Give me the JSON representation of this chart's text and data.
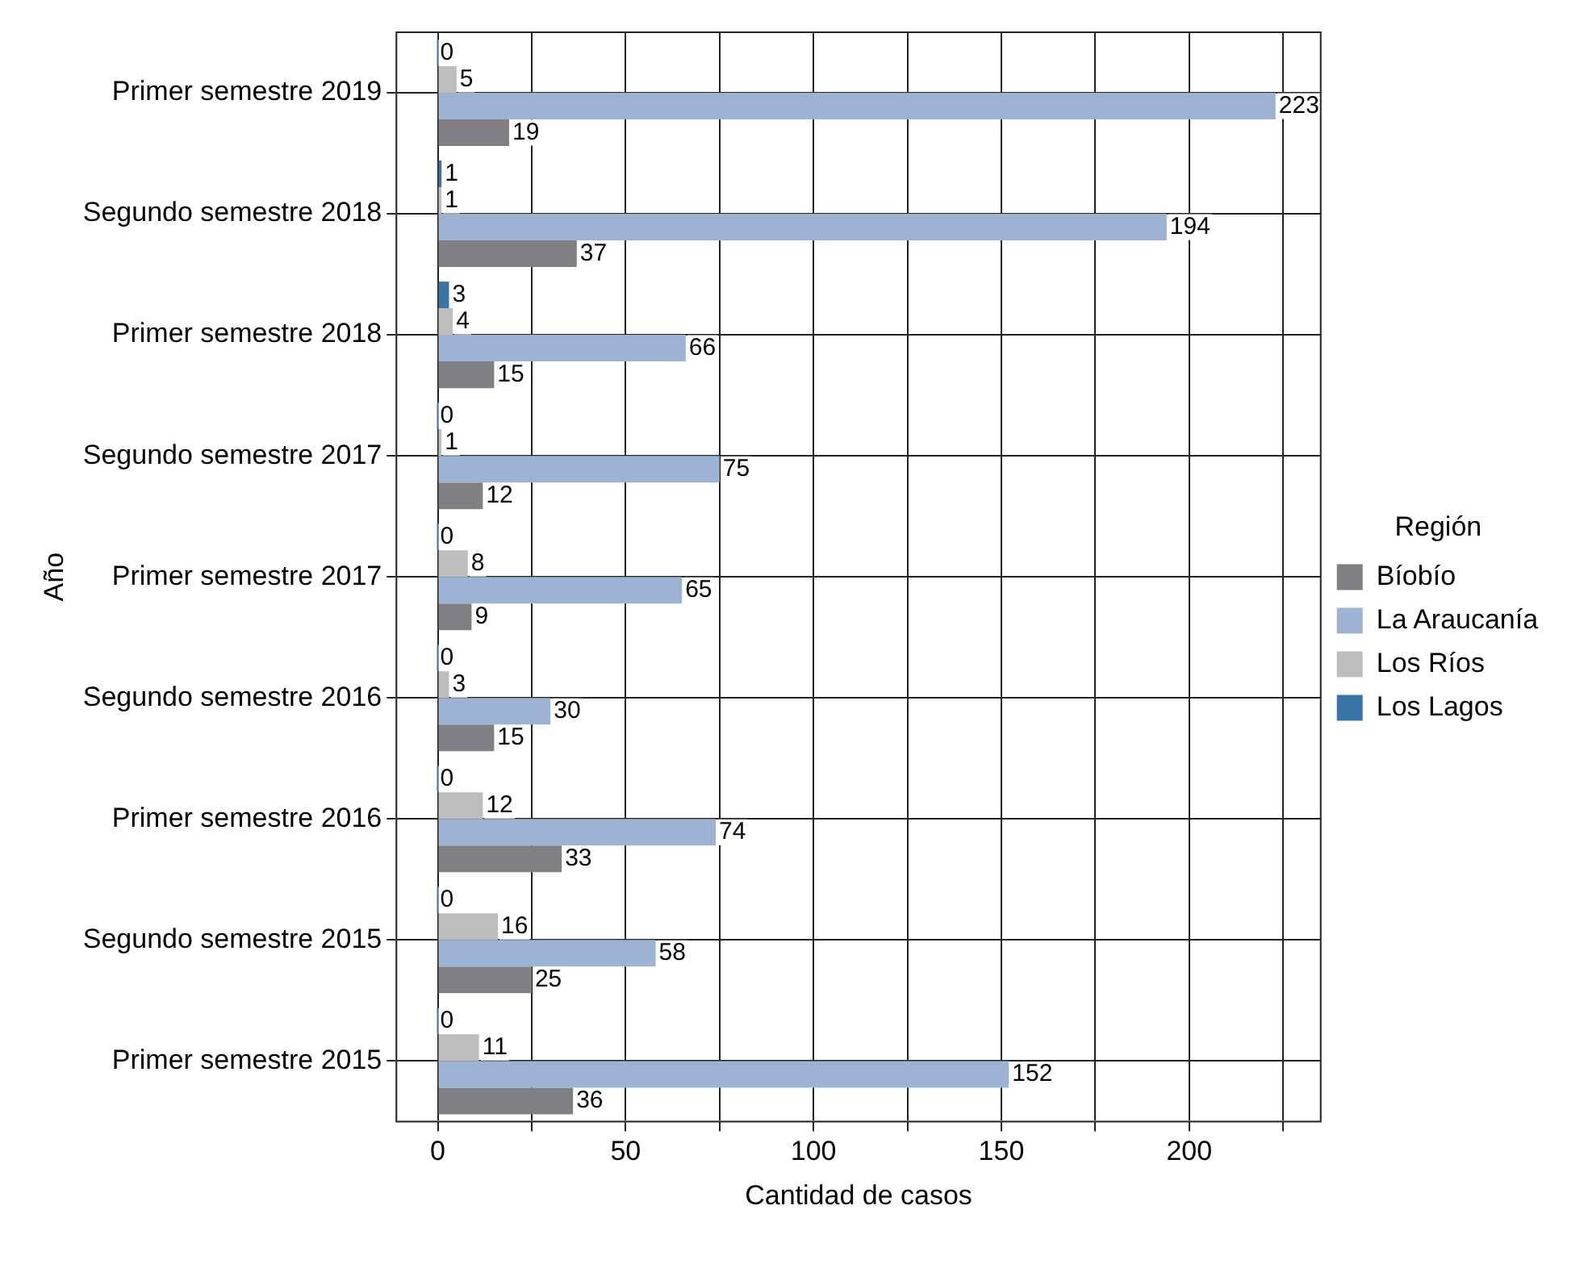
{
  "chart_data": {
    "type": "bar",
    "orientation": "horizontal",
    "xlabel": "Cantidad de casos",
    "ylabel": "Año",
    "legend_title": "Región",
    "legend": "right",
    "grid": true,
    "data_labels": true,
    "categories": [
      "Primer semestre 2019",
      "Segundo semestre 2018",
      "Primer semestre 2018",
      "Segundo semestre 2017",
      "Primer semestre 2017",
      "Segundo semestre 2016",
      "Primer semestre 2016",
      "Segundo semestre 2015",
      "Primer semestre 2015"
    ],
    "xlim": [
      -11,
      235
    ],
    "xticks": [
      0,
      {
        "value": 25,
        "label": null
      },
      50,
      {
        "value": 75,
        "label": null
      },
      100,
      {
        "value": 125,
        "label": null
      },
      150,
      {
        "value": 175,
        "label": null
      },
      200,
      {
        "value": 225,
        "label": null
      }
    ],
    "series": [
      {
        "name": "Bíobío",
        "color": "#7f7f84",
        "values": [
          19,
          37,
          15,
          12,
          9,
          15,
          33,
          25,
          36
        ]
      },
      {
        "name": "La Araucanía",
        "color": "#9db3d4",
        "values": [
          223,
          194,
          66,
          75,
          65,
          30,
          74,
          58,
          152
        ]
      },
      {
        "name": "Los Ríos",
        "color": "#bdbdbd",
        "values": [
          5,
          1,
          4,
          1,
          8,
          3,
          12,
          16,
          11
        ]
      },
      {
        "name": "Los Lagos",
        "color": "#3a73a5",
        "values": [
          0,
          1,
          3,
          0,
          0,
          0,
          0,
          0,
          0
        ]
      }
    ]
  }
}
